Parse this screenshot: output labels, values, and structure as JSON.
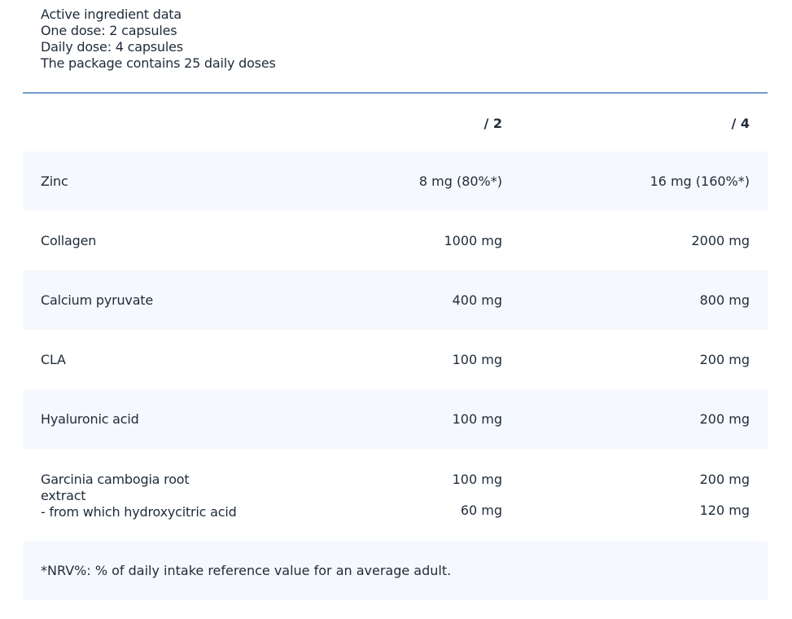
{
  "intro": [
    "Active ingredient data",
    "One dose: 2 capsules",
    "Daily dose: 4 capsules",
    "The package contains 25 daily doses"
  ],
  "header": {
    "col1": "",
    "col2": "/ 2",
    "col3": "/ 4"
  },
  "rows": [
    {
      "name": "Zinc",
      "dose": "8 mg (80%*)",
      "daily": "16 mg (160%*)"
    },
    {
      "name": "Collagen",
      "dose": "1000 mg",
      "daily": "2000 mg"
    },
    {
      "name": "Calcium pyruvate",
      "dose": "400 mg",
      "daily": "800 mg"
    },
    {
      "name": "CLA",
      "dose": "100 mg",
      "daily": "200 mg"
    },
    {
      "name": "Hyaluronic acid",
      "dose": "100 mg",
      "daily": "200 mg"
    },
    {
      "name": "Garcinia cambogia root extract",
      "dose": "100 mg",
      "daily": "200 mg",
      "sub": {
        "name": "- from which hydroxycitric acid",
        "dose": "60 mg",
        "daily": "120 mg"
      }
    }
  ],
  "footnote": "*NRV%: % of daily intake reference value for an average adult.",
  "colors": {
    "rule": "#6f9ccb",
    "stripe": "#f5f8fc",
    "text": "#1f2b3a"
  }
}
